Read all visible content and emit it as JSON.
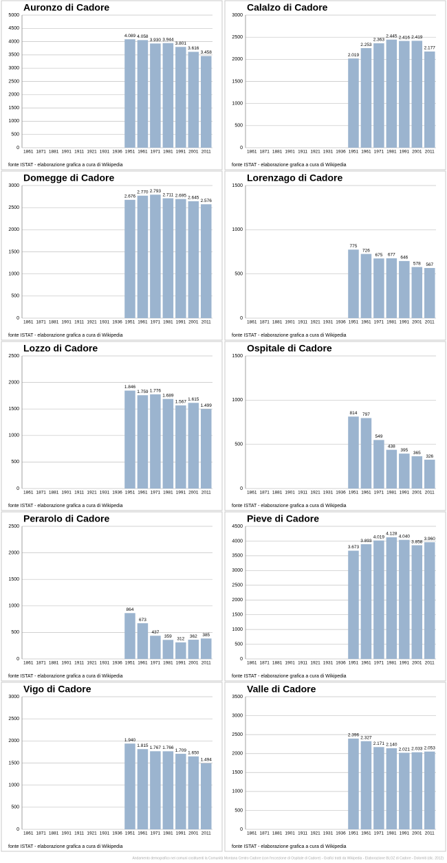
{
  "chart_data": [
    {
      "type": "bar",
      "title": "Auronzo di Cadore",
      "source": "fonte ISTAT - elaborazione grafica a cura di Wikipedia",
      "color": "#9bb4cf",
      "grid": true,
      "categories": [
        "1861",
        "1871",
        "1881",
        "1901",
        "1911",
        "1921",
        "1931",
        "1936",
        "1951",
        "1961",
        "1971",
        "1981",
        "1991",
        "2001",
        "2011"
      ],
      "values": [
        null,
        null,
        null,
        null,
        null,
        null,
        null,
        null,
        4089,
        4058,
        3930,
        3944,
        3801,
        3616,
        3458
      ],
      "value_labels": [
        null,
        null,
        null,
        null,
        null,
        null,
        null,
        null,
        "4.089",
        "4.058",
        "3.930",
        "3.944",
        "3.801",
        "3.616",
        "3.458"
      ],
      "ylim": [
        0,
        5000
      ],
      "yticks": [
        0,
        500,
        1000,
        1500,
        2000,
        2500,
        3000,
        3500,
        4000,
        4500,
        5000
      ]
    },
    {
      "type": "bar",
      "title": "Calalzo di Cadore",
      "source": "fonte ISTAT - elaborazione grafica a cura di Wikipedia",
      "color": "#9bb4cf",
      "grid": true,
      "categories": [
        "1861",
        "1871",
        "1881",
        "1901",
        "1911",
        "1921",
        "1931",
        "1936",
        "1951",
        "1961",
        "1971",
        "1981",
        "1991",
        "2001",
        "2011"
      ],
      "values": [
        null,
        null,
        null,
        null,
        null,
        null,
        null,
        null,
        2019,
        2253,
        2363,
        2445,
        2416,
        2419,
        2177
      ],
      "value_labels": [
        null,
        null,
        null,
        null,
        null,
        null,
        null,
        null,
        "2.019",
        "2.253",
        "2.363",
        "2.445",
        "2.416",
        "2.419",
        "2.177"
      ],
      "ylim": [
        0,
        3000
      ],
      "yticks": [
        0,
        500,
        1000,
        1500,
        2000,
        2500,
        3000
      ]
    },
    {
      "type": "bar",
      "title": "Domegge di Cadore",
      "source": "fonte ISTAT - elaborazione grafica a cura di Wikipedia",
      "color": "#9bb4cf",
      "grid": true,
      "categories": [
        "1861",
        "1871",
        "1881",
        "1901",
        "1911",
        "1921",
        "1931",
        "1936",
        "1951",
        "1961",
        "1971",
        "1981",
        "1991",
        "2001",
        "2011"
      ],
      "values": [
        null,
        null,
        null,
        null,
        null,
        null,
        null,
        null,
        2676,
        2770,
        2793,
        2711,
        2695,
        2645,
        2576
      ],
      "value_labels": [
        null,
        null,
        null,
        null,
        null,
        null,
        null,
        null,
        "2.676",
        "2.770",
        "2.793",
        "2.711",
        "2.695",
        "2.645",
        "2.576"
      ],
      "ylim": [
        0,
        3000
      ],
      "yticks": [
        0,
        500,
        1000,
        1500,
        2000,
        2500,
        3000
      ]
    },
    {
      "type": "bar",
      "title": "Lorenzago di Cadore",
      "source": "fonte ISTAT - elaborazione grafica a cura di Wikipedia",
      "color": "#9bb4cf",
      "grid": true,
      "categories": [
        "1861",
        "1871",
        "1881",
        "1901",
        "1911",
        "1921",
        "1931",
        "1936",
        "1951",
        "1961",
        "1971",
        "1981",
        "1991",
        "2001",
        "2011"
      ],
      "values": [
        null,
        null,
        null,
        null,
        null,
        null,
        null,
        null,
        775,
        726,
        675,
        677,
        646,
        578,
        567
      ],
      "ylim": [
        0,
        1500
      ],
      "yticks": [
        0,
        500,
        1000,
        1500
      ]
    },
    {
      "type": "bar",
      "title": "Lozzo di Cadore",
      "source": "fonte ISTAT - elaborazione grafica a cura di Wikipedia",
      "color": "#9bb4cf",
      "grid": true,
      "categories": [
        "1861",
        "1871",
        "1881",
        "1901",
        "1911",
        "1921",
        "1931",
        "1936",
        "1951",
        "1961",
        "1971",
        "1981",
        "1991",
        "2001",
        "2011"
      ],
      "values": [
        null,
        null,
        null,
        null,
        null,
        null,
        null,
        null,
        1846,
        1759,
        1776,
        1689,
        1567,
        1615,
        1499
      ],
      "value_labels": [
        null,
        null,
        null,
        null,
        null,
        null,
        null,
        null,
        "1.846",
        "1.759",
        "1.776",
        "1.689",
        "1.567",
        "1.615",
        "1.499"
      ],
      "ylim": [
        0,
        2500
      ],
      "yticks": [
        0,
        500,
        1000,
        1500,
        2000,
        2500
      ]
    },
    {
      "type": "bar",
      "title": "Ospitale di Cadore",
      "source": "fonte ISTAT - elaborazione grafica a cura di Wikipedia",
      "color": "#9bb4cf",
      "grid": true,
      "categories": [
        "1861",
        "1871",
        "1881",
        "1901",
        "1911",
        "1921",
        "1931",
        "1936",
        "1951",
        "1961",
        "1971",
        "1981",
        "1991",
        "2001",
        "2011"
      ],
      "values": [
        null,
        null,
        null,
        null,
        null,
        null,
        null,
        null,
        814,
        797,
        549,
        438,
        395,
        365,
        326
      ],
      "ylim": [
        0,
        1500
      ],
      "yticks": [
        0,
        500,
        1000,
        1500
      ]
    },
    {
      "type": "bar",
      "title": "Perarolo di Cadore",
      "source": "fonte ISTAT - elaborazione grafica a cura di Wikipedia",
      "color": "#9bb4cf",
      "grid": true,
      "categories": [
        "1861",
        "1871",
        "1881",
        "1901",
        "1911",
        "1921",
        "1931",
        "1936",
        "1951",
        "1961",
        "1971",
        "1981",
        "1991",
        "2001",
        "2011"
      ],
      "values": [
        null,
        null,
        null,
        null,
        null,
        null,
        null,
        null,
        864,
        673,
        437,
        359,
        312,
        362,
        385
      ],
      "ylim": [
        0,
        2500
      ],
      "yticks": [
        0,
        500,
        1000,
        1500,
        2000,
        2500
      ]
    },
    {
      "type": "bar",
      "title": "Pieve di Cadore",
      "source": "fonte ISTAT - elaborazione grafica a cura di Wikipedia",
      "color": "#9bb4cf",
      "grid": true,
      "categories": [
        "1861",
        "1871",
        "1881",
        "1901",
        "1911",
        "1921",
        "1931",
        "1936",
        "1951",
        "1961",
        "1971",
        "1981",
        "1991",
        "2001",
        "2011"
      ],
      "values": [
        null,
        null,
        null,
        null,
        null,
        null,
        null,
        null,
        3673,
        3893,
        4019,
        4128,
        4040,
        3858,
        3960
      ],
      "value_labels": [
        null,
        null,
        null,
        null,
        null,
        null,
        null,
        null,
        "3.673",
        "3.893",
        "4.019",
        "4.128",
        "4.040",
        "3.858",
        "3.960"
      ],
      "ylim": [
        0,
        4500
      ],
      "yticks": [
        0,
        500,
        1000,
        1500,
        2000,
        2500,
        3000,
        3500,
        4000,
        4500
      ]
    },
    {
      "type": "bar",
      "title": "Vigo di Cadore",
      "source": "fonte ISTAT - elaborazione grafica a cura di Wikipedia",
      "color": "#9bb4cf",
      "grid": true,
      "categories": [
        "1861",
        "1871",
        "1881",
        "1901",
        "1911",
        "1921",
        "1931",
        "1936",
        "1951",
        "1961",
        "1971",
        "1981",
        "1991",
        "2001",
        "2011"
      ],
      "values": [
        null,
        null,
        null,
        null,
        null,
        null,
        null,
        null,
        1940,
        1815,
        1767,
        1766,
        1709,
        1650,
        1494
      ],
      "value_labels": [
        null,
        null,
        null,
        null,
        null,
        null,
        null,
        null,
        "1.940",
        "1.815",
        "1.767",
        "1.766",
        "1.709",
        "1.650",
        "1.494"
      ],
      "ylim": [
        0,
        3000
      ],
      "yticks": [
        0,
        500,
        1000,
        1500,
        2000,
        2500,
        3000
      ]
    },
    {
      "type": "bar",
      "title": "Valle di Cadore",
      "source": "fonte ISTAT - elaborazione grafica a cura di Wikipedia",
      "color": "#9bb4cf",
      "grid": true,
      "categories": [
        "1861",
        "1871",
        "1881",
        "1901",
        "1911",
        "1921",
        "1931",
        "1936",
        "1951",
        "1961",
        "1971",
        "1981",
        "1991",
        "2001",
        "2011"
      ],
      "values": [
        null,
        null,
        null,
        null,
        null,
        null,
        null,
        null,
        2396,
        2327,
        2171,
        2140,
        2021,
        2033,
        2053
      ],
      "value_labels": [
        null,
        null,
        null,
        null,
        null,
        null,
        null,
        null,
        "2.396",
        "2.327",
        "2.171",
        "2.140",
        "2.021",
        "2.033",
        "2.053"
      ],
      "ylim": [
        0,
        3500
      ],
      "yticks": [
        0,
        500,
        1000,
        1500,
        2000,
        2500,
        3000,
        3500
      ]
    }
  ],
  "caption": "Andamento demografico nei comuni costituenti la Comunità Montana Centro Cadore (con l'eccezione di Ospitale di Cadore) - Grafici tratti da Wikipedia - Elaborazione BLOZ di Cadore - Dolomiti (dic. 2012)"
}
